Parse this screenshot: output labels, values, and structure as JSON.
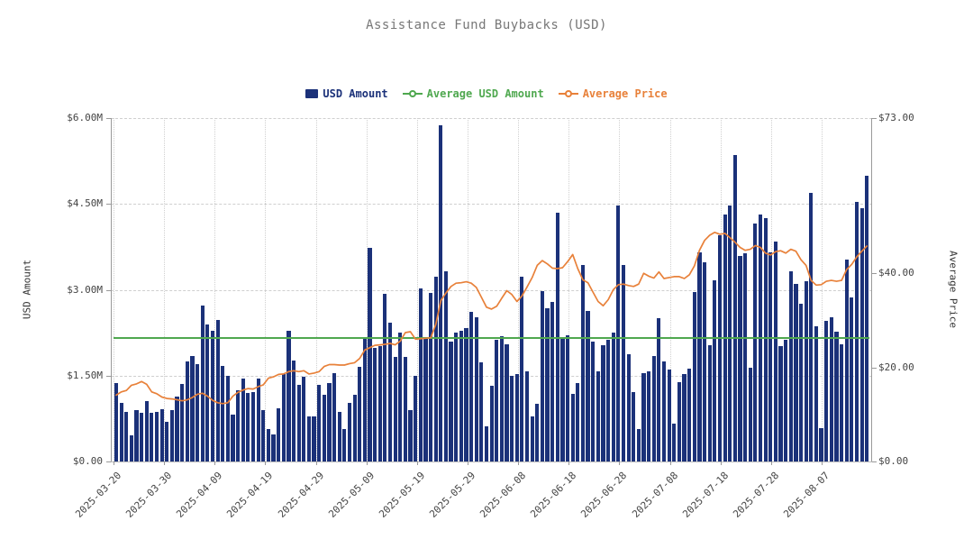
{
  "title": "Assistance Fund Buybacks (USD)",
  "colors": {
    "bar": "#1b3179",
    "avg_line": "#4fa84f",
    "price_line": "#e8813a",
    "grid": "#cfcfcf",
    "axis": "#999999",
    "title_text": "#777777",
    "tick_text": "#444444",
    "background": "#ffffff"
  },
  "legend": {
    "items": [
      {
        "label": "USD Amount",
        "color": "#1b3179",
        "marker": "square"
      },
      {
        "label": "Average USD Amount",
        "color": "#4fa84f",
        "marker": "line-circle"
      },
      {
        "label": "Average Price",
        "color": "#e8813a",
        "marker": "line-circle"
      }
    ]
  },
  "chart_data": {
    "type": "bar",
    "title": "Assistance Fund Buybacks (USD)",
    "xlabel": "",
    "x_tick_labels": [
      "2025-03-20",
      "2025-03-30",
      "2025-04-09",
      "2025-04-19",
      "2025-04-29",
      "2025-05-09",
      "2025-05-19",
      "2025-05-29",
      "2025-06-08",
      "2025-06-18",
      "2025-06-28",
      "2025-07-08",
      "2025-07-18",
      "2025-07-28",
      "2025-08-07"
    ],
    "x_tick_interval_days": 10,
    "grid": true,
    "legend_position": "top",
    "y_left": {
      "label": "USD Amount",
      "min": 0,
      "max": 6000000,
      "ticks": [
        {
          "label": "$0.00",
          "value": 0
        },
        {
          "label": "$1.50M",
          "value": 1.5
        },
        {
          "label": "$3.00M",
          "value": 3.0
        },
        {
          "label": "$4.50M",
          "value": 4.5
        },
        {
          "label": "$6.00M",
          "value": 6.0
        }
      ]
    },
    "y_right": {
      "label": "Average Price",
      "min": 0,
      "max": 73,
      "ticks": [
        {
          "label": "$0.00",
          "value": 0
        },
        {
          "label": "$20.00",
          "value": 20
        },
        {
          "label": "$40.00",
          "value": 40
        },
        {
          "label": "$73.00",
          "value": 73
        }
      ]
    },
    "series": [
      {
        "name": "USD Amount",
        "type": "bar",
        "axis": "left",
        "unit": "USD (millions)",
        "values": [
          1.37,
          1.03,
          0.87,
          0.46,
          0.9,
          0.85,
          1.06,
          0.85,
          0.86,
          0.92,
          0.69,
          0.9,
          1.14,
          1.35,
          1.75,
          1.85,
          1.7,
          2.72,
          2.39,
          2.28,
          2.47,
          1.67,
          1.49,
          0.82,
          1.24,
          1.45,
          1.19,
          1.21,
          1.45,
          0.9,
          0.56,
          0.48,
          0.93,
          1.53,
          2.29,
          1.76,
          1.34,
          1.48,
          0.79,
          0.79,
          1.34,
          1.16,
          1.37,
          1.55,
          0.87,
          0.56,
          1.03,
          1.16,
          1.66,
          2.16,
          3.73,
          1.99,
          2.02,
          2.93,
          2.42,
          1.82,
          2.26,
          1.82,
          0.9,
          1.5,
          3.02,
          2.18,
          2.95,
          3.23,
          5.87,
          3.32,
          2.1,
          2.25,
          2.28,
          2.33,
          2.62,
          2.52,
          1.74,
          0.61,
          1.32,
          2.13,
          2.19,
          2.05,
          1.5,
          1.53,
          3.23,
          1.57,
          0.79,
          1.01,
          2.97,
          2.68,
          2.79,
          4.34,
          2.18,
          2.21,
          1.18,
          1.37,
          3.43,
          2.63,
          2.1,
          1.58,
          2.03,
          2.13,
          2.26,
          4.47,
          3.44,
          1.87,
          1.21,
          0.56,
          1.54,
          1.57,
          1.85,
          2.5,
          1.75,
          1.61,
          0.66,
          1.38,
          1.53,
          1.62,
          2.96,
          3.65,
          3.48,
          2.03,
          3.17,
          3.95,
          4.31,
          4.47,
          5.35,
          3.59,
          3.64,
          1.64,
          4.15,
          4.32,
          4.25,
          3.65,
          3.85,
          2.01,
          2.13,
          3.32,
          3.1,
          2.75,
          3.15,
          4.69,
          2.36,
          0.59,
          2.46,
          2.52,
          2.27,
          2.04,
          3.52,
          2.87,
          4.53,
          4.42,
          5.0
        ]
      },
      {
        "name": "Average USD Amount",
        "type": "line",
        "axis": "left",
        "unit": "USD (millions)",
        "constant_value": 2.16
      },
      {
        "name": "Average Price",
        "type": "line",
        "axis": "right",
        "unit": "USD",
        "values": [
          14.1,
          14.8,
          15.1,
          16.2,
          16.5,
          17.0,
          16.4,
          14.8,
          14.4,
          13.7,
          13.4,
          13.3,
          13.1,
          12.9,
          13.1,
          13.6,
          14.3,
          14.5,
          13.9,
          13.0,
          12.5,
          12.3,
          12.5,
          13.9,
          14.7,
          15.2,
          15.5,
          15.4,
          15.9,
          16.3,
          17.7,
          18.0,
          18.5,
          18.6,
          19.1,
          19.3,
          19.1,
          19.3,
          18.6,
          18.8,
          19.1,
          20.2,
          20.6,
          20.6,
          20.5,
          20.5,
          20.8,
          21.0,
          21.9,
          23.7,
          24.2,
          24.7,
          24.8,
          24.9,
          25.1,
          24.8,
          25.6,
          27.4,
          27.6,
          26.0,
          26.1,
          26.2,
          26.3,
          29.1,
          34.2,
          35.8,
          37.2,
          37.9,
          38.0,
          38.2,
          37.9,
          37.0,
          34.9,
          32.8,
          32.4,
          33.0,
          34.7,
          36.3,
          35.5,
          34.0,
          35.2,
          37.1,
          39.1,
          41.7,
          42.7,
          42.0,
          41.1,
          41.0,
          41.2,
          42.5,
          44.0,
          41.0,
          38.6,
          38.0,
          36.0,
          34.0,
          33.1,
          34.4,
          36.5,
          37.6,
          37.7,
          37.4,
          37.2,
          37.7,
          40.0,
          39.4,
          39.0,
          40.3,
          38.9,
          39.1,
          39.3,
          39.3,
          38.9,
          39.7,
          41.6,
          44.9,
          47.0,
          48.1,
          48.7,
          48.3,
          48.5,
          47.6,
          46.6,
          45.5,
          44.9,
          45.1,
          45.9,
          45.5,
          44.3,
          43.9,
          44.6,
          44.8,
          44.3,
          45.1,
          44.7,
          42.9,
          41.7,
          38.5,
          37.5,
          37.6,
          38.3,
          38.5,
          38.3,
          38.5,
          40.8,
          41.9,
          43.5,
          44.7,
          45.8
        ]
      }
    ]
  }
}
